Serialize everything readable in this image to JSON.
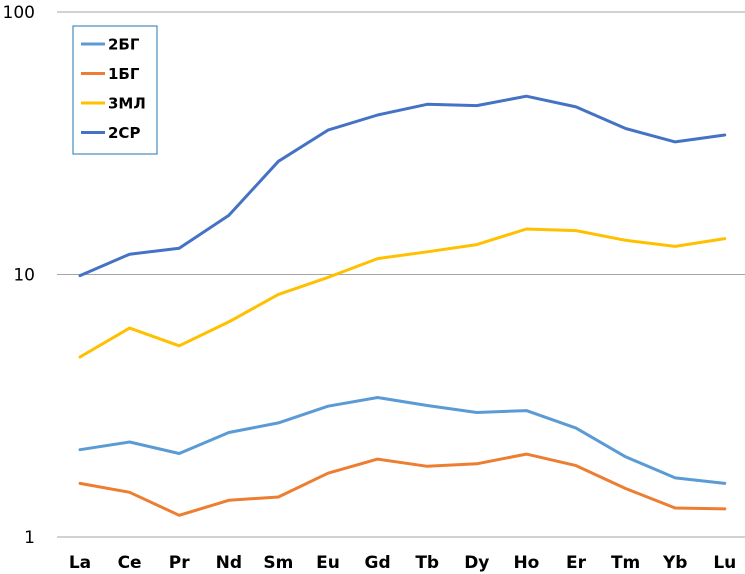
{
  "chart_data": {
    "type": "line",
    "y_scale": "log",
    "ylim": [
      1,
      100
    ],
    "y_ticks": [
      "1",
      "10",
      "100"
    ],
    "grid": true,
    "legend_position": "top-left",
    "categories": [
      "La",
      "Ce",
      "Pr",
      "Nd",
      "Sm",
      "Eu",
      "Gd",
      "Tb",
      "Dy",
      "Ho",
      "Er",
      "Tm",
      "Yb",
      "Lu"
    ],
    "series": [
      {
        "name": "2БГ",
        "color": "#5B9BD5",
        "values": [
          2.15,
          2.3,
          2.08,
          2.5,
          2.72,
          3.15,
          3.4,
          3.17,
          2.98,
          3.03,
          2.6,
          2.02,
          1.68,
          1.6
        ]
      },
      {
        "name": "1БГ",
        "color": "#ED7D31",
        "values": [
          1.6,
          1.48,
          1.21,
          1.38,
          1.42,
          1.75,
          1.98,
          1.86,
          1.9,
          2.07,
          1.87,
          1.53,
          1.29,
          1.28
        ]
      },
      {
        "name": "3МЛ",
        "color": "#FFC000",
        "values": [
          4.85,
          6.25,
          5.35,
          6.6,
          8.4,
          9.75,
          11.5,
          12.2,
          13.0,
          14.9,
          14.7,
          13.5,
          12.8,
          13.7
        ]
      },
      {
        "name": "2СР",
        "color": "#4472C4",
        "values": [
          9.9,
          11.95,
          12.6,
          16.8,
          27.0,
          35.5,
          40.5,
          44.5,
          44.0,
          47.8,
          43.5,
          36.0,
          32.0,
          34.0
        ]
      }
    ]
  }
}
